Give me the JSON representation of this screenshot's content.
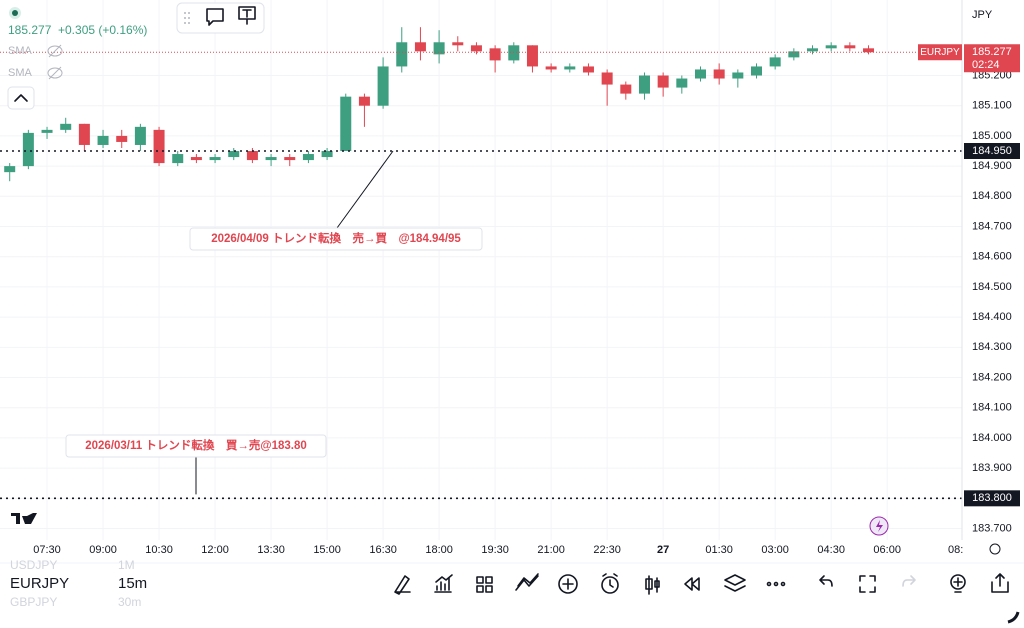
{
  "header": {
    "price": "185.277",
    "change": "+0.305 (+0.16%)",
    "indicators": [
      "SMA",
      "SMA"
    ],
    "currency": "JPY"
  },
  "chart_data": {
    "type": "candlestick",
    "categories": [
      null,
      null,
      "07:30",
      null,
      null,
      "09:00",
      null,
      null,
      "10:30",
      null,
      null,
      "12:00",
      null,
      null,
      "13:30",
      null,
      null,
      "15:00",
      null,
      null,
      "16:30",
      null,
      null,
      "18:00",
      null,
      null,
      "19:30",
      null,
      null,
      "21:00",
      null,
      null,
      "22:30",
      null,
      null,
      "27",
      null,
      null,
      "01:30",
      null,
      null,
      "03:00",
      null,
      null,
      "04:30",
      null,
      null,
      "06:00"
    ],
    "open": [
      184.88,
      184.9,
      185.01,
      185.02,
      185.04,
      184.97,
      185.0,
      184.97,
      185.02,
      184.91,
      184.93,
      184.92,
      184.93,
      184.95,
      184.92,
      184.93,
      184.92,
      184.93,
      184.95,
      185.13,
      185.1,
      185.23,
      185.31,
      185.27,
      185.31,
      185.3,
      185.29,
      185.25,
      185.3,
      185.23,
      185.22,
      185.23,
      185.21,
      185.17,
      185.14,
      185.2,
      185.16,
      185.19,
      185.22,
      185.19,
      185.2,
      185.23,
      185.26,
      185.28,
      185.29,
      185.3,
      185.29,
      null
    ],
    "high": [
      184.91,
      185.02,
      185.03,
      185.06,
      185.04,
      185.02,
      185.02,
      185.04,
      185.03,
      184.95,
      184.94,
      184.94,
      184.96,
      184.96,
      184.94,
      184.94,
      184.95,
      184.96,
      185.14,
      185.14,
      185.26,
      185.36,
      185.36,
      185.35,
      185.33,
      185.31,
      185.3,
      185.31,
      185.3,
      185.24,
      185.24,
      185.24,
      185.22,
      185.18,
      185.21,
      185.21,
      185.2,
      185.23,
      185.24,
      185.22,
      185.24,
      185.27,
      185.29,
      185.3,
      185.31,
      185.31,
      185.3,
      null
    ],
    "low": [
      184.85,
      184.89,
      184.99,
      185.01,
      184.95,
      184.96,
      184.96,
      184.95,
      184.9,
      184.9,
      184.91,
      184.91,
      184.92,
      184.91,
      184.9,
      184.9,
      184.91,
      184.92,
      184.95,
      185.03,
      185.09,
      185.21,
      185.25,
      185.24,
      185.28,
      185.27,
      185.21,
      185.24,
      185.21,
      185.21,
      185.21,
      185.2,
      185.1,
      185.12,
      185.12,
      185.13,
      185.14,
      185.18,
      185.17,
      185.16,
      185.19,
      185.22,
      185.25,
      185.27,
      185.28,
      185.28,
      185.27,
      null
    ],
    "close": [
      184.9,
      185.01,
      185.02,
      185.04,
      184.97,
      185.0,
      184.98,
      185.03,
      184.91,
      184.94,
      184.92,
      184.93,
      184.95,
      184.92,
      184.93,
      184.92,
      184.94,
      184.95,
      185.13,
      185.1,
      185.23,
      185.31,
      185.28,
      185.31,
      185.3,
      185.28,
      185.25,
      185.3,
      185.23,
      185.22,
      185.23,
      185.21,
      185.17,
      185.14,
      185.2,
      185.16,
      185.19,
      185.22,
      185.19,
      185.21,
      185.23,
      185.26,
      185.28,
      185.29,
      185.3,
      185.29,
      185.277,
      null
    ],
    "up_color": "#3d9f80",
    "down_color": "#e04650",
    "ylim": [
      183.662,
      185.45
    ],
    "yticks": [
      {
        "value": 183.7,
        "label": "183.700"
      },
      {
        "value": 183.8,
        "label": "183.800"
      },
      {
        "value": 183.9,
        "label": "183.900"
      },
      {
        "value": 184.0,
        "label": "184.000"
      },
      {
        "value": 184.1,
        "label": "184.100"
      },
      {
        "value": 184.2,
        "label": "184.200"
      },
      {
        "value": 184.3,
        "label": "184.300"
      },
      {
        "value": 184.4,
        "label": "184.400"
      },
      {
        "value": 184.5,
        "label": "184.500"
      },
      {
        "value": 184.6,
        "label": "184.600"
      },
      {
        "value": 184.7,
        "label": "184.700"
      },
      {
        "value": 184.8,
        "label": "184.800"
      },
      {
        "value": 184.9,
        "label": "184.900"
      },
      {
        "value": 185.0,
        "label": "185.000"
      },
      {
        "value": 185.1,
        "label": "185.100"
      },
      {
        "value": 185.2,
        "label": "185.200"
      }
    ],
    "grid": true,
    "hlines": [
      {
        "value": 184.95,
        "label": "184.950"
      },
      {
        "value": 183.8,
        "label": "183.800"
      }
    ],
    "annotations": [
      "2026/04/09 トレンド転換　売→買　@184.94/95",
      "2026/03/11 トレンド転換　買→売@183.80"
    ],
    "last_price": {
      "value": 185.277,
      "label": "185.277"
    },
    "countdown": "02:24",
    "symbol": "EURJPY"
  },
  "toolbar": {
    "symbol": "EURJPY",
    "interval": "15m",
    "watchlist": [
      {
        "symbol": "USDJPY",
        "interval": "1M"
      },
      {
        "symbol": "GBPJPY",
        "interval": "30m"
      }
    ]
  }
}
